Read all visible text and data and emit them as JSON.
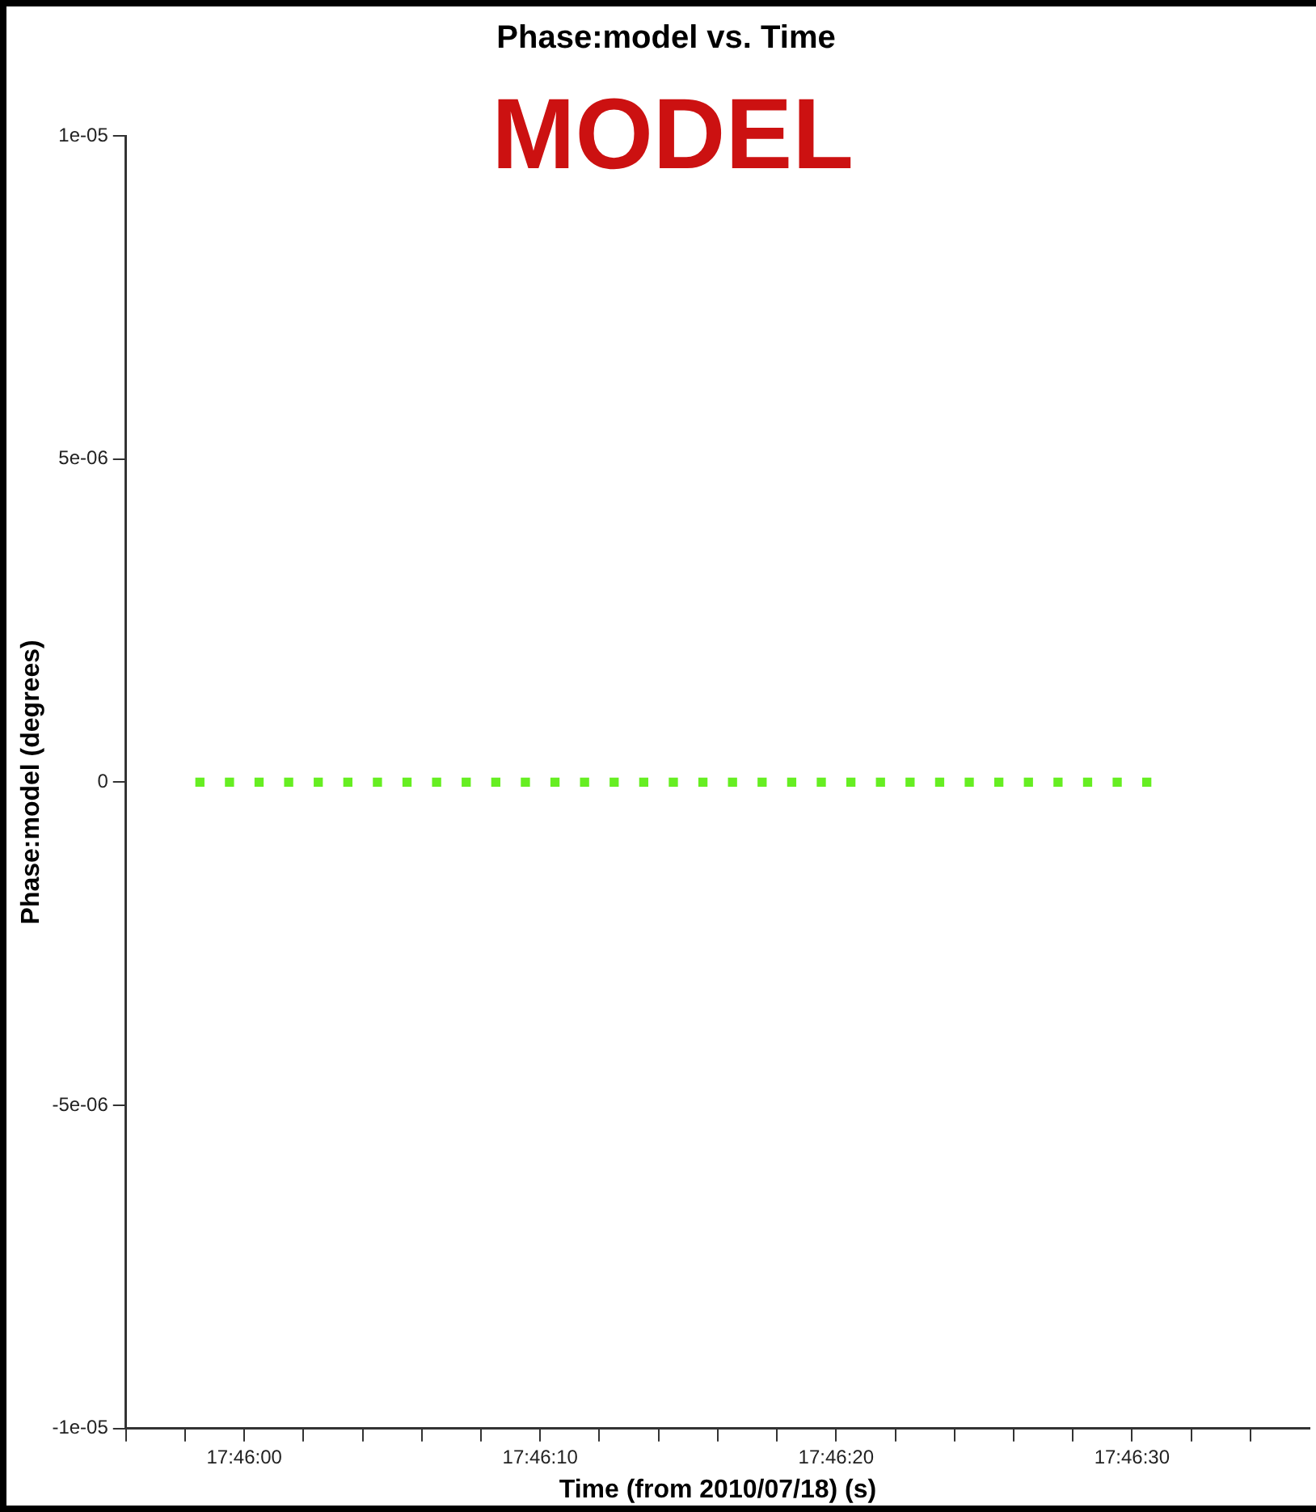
{
  "chart_data": {
    "type": "scatter",
    "title": "Phase:model vs. Time",
    "xlabel": "Time (from 2010/07/18) (s)",
    "ylabel": "Phase:model (degrees)",
    "annotations": [
      "MODEL"
    ],
    "x": [
      63958.5,
      63959.5,
      63960.5,
      63961.5,
      63962.5,
      63963.5,
      63964.5,
      63965.5,
      63966.5,
      63967.5,
      63968.5,
      63969.5,
      63970.5,
      63971.5,
      63972.5,
      63973.5,
      63974.5,
      63975.5,
      63976.5,
      63977.5,
      63978.5,
      63979.5,
      63980.5,
      63981.5,
      63982.5,
      63983.5,
      63984.5,
      63985.5,
      63986.5,
      63987.5,
      63988.5,
      63989.5,
      63990.5
    ],
    "series": [
      {
        "color": "#66ee22",
        "values": [
          0,
          0,
          0,
          0,
          0,
          0,
          0,
          0,
          0,
          0,
          0,
          0,
          0,
          0,
          0,
          0,
          0,
          0,
          0,
          0,
          0,
          0,
          0,
          0,
          0,
          0,
          0,
          0,
          0,
          0,
          0,
          0,
          0
        ]
      }
    ],
    "xlim": [
      63956,
      63996
    ],
    "xticks": [
      {
        "value": 63956,
        "label": null
      },
      {
        "value": 63958,
        "label": null
      },
      {
        "value": 63960,
        "label": "17:46:00"
      },
      {
        "value": 63962,
        "label": null
      },
      {
        "value": 63964,
        "label": null
      },
      {
        "value": 63966,
        "label": null
      },
      {
        "value": 63968,
        "label": null
      },
      {
        "value": 63970,
        "label": "17:46:10"
      },
      {
        "value": 63972,
        "label": null
      },
      {
        "value": 63974,
        "label": null
      },
      {
        "value": 63976,
        "label": null
      },
      {
        "value": 63978,
        "label": null
      },
      {
        "value": 63980,
        "label": "17:46:20"
      },
      {
        "value": 63982,
        "label": null
      },
      {
        "value": 63984,
        "label": null
      },
      {
        "value": 63986,
        "label": null
      },
      {
        "value": 63988,
        "label": null
      },
      {
        "value": 63990,
        "label": "17:46:30"
      },
      {
        "value": 63992,
        "label": null
      },
      {
        "value": 63994,
        "label": null
      }
    ],
    "ylim": [
      -1e-05,
      1e-05
    ],
    "yticks": [
      {
        "value": -1e-05,
        "label": "-1e-05"
      },
      {
        "value": -5e-06,
        "label": "-5e-06"
      },
      {
        "value": 0,
        "label": "0"
      },
      {
        "value": 5e-06,
        "label": "5e-06"
      },
      {
        "value": 1e-05,
        "label": "1e-05"
      }
    ],
    "marker": "square",
    "grid": false,
    "legend": false
  }
}
